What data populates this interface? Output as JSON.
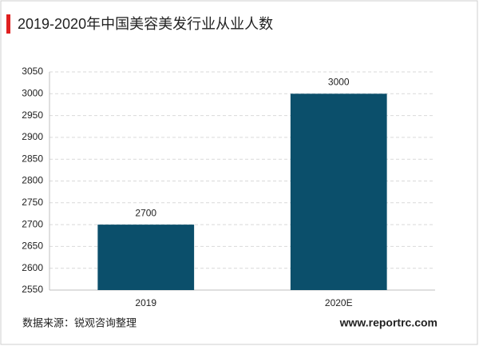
{
  "chart_data": {
    "type": "bar",
    "title": "2019-2020年中国美容美发行业从业人数",
    "categories": [
      "2019",
      "2020E"
    ],
    "values": [
      2700,
      3000
    ],
    "color": "#0b4f6b",
    "ylim": [
      2550,
      3050
    ],
    "yticks": [
      2550,
      2600,
      2650,
      2700,
      2750,
      2800,
      2850,
      2900,
      2950,
      3000,
      3050
    ],
    "grid": true,
    "source": "数据来源：锐观咨询整理",
    "website": "www.reportrc.com"
  }
}
